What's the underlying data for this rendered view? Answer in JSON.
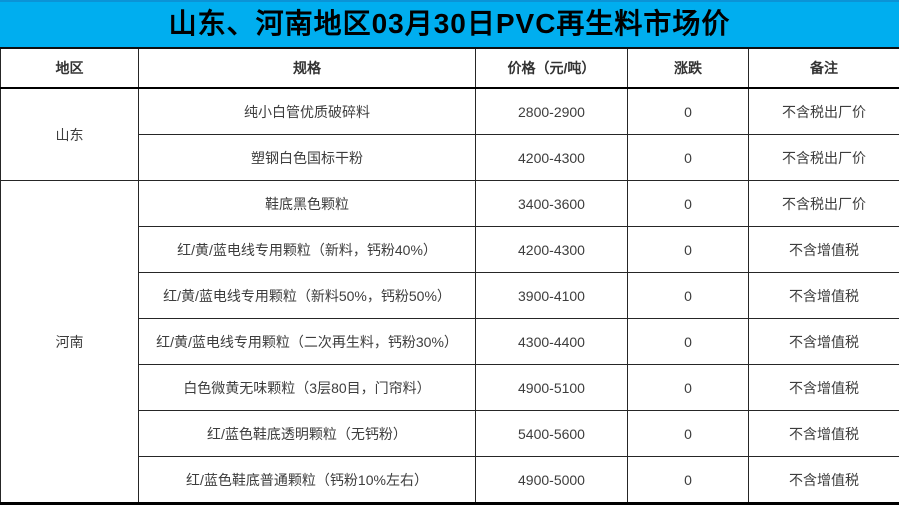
{
  "title": "山东、河南地区03月30日PVC再生料市场价",
  "colors": {
    "title_bg": "#00AEEF",
    "title_text": "#000000",
    "grid_line": "#262626",
    "body_text": "#3d3d3d"
  },
  "table": {
    "headers": [
      "地区",
      "规格",
      "价格（元/吨）",
      "涨跌",
      "备注"
    ],
    "regions": [
      {
        "name": "山东",
        "rowspan": 2
      },
      {
        "name": "河南",
        "rowspan": 7
      }
    ],
    "rows": [
      {
        "spec": "纯小白管优质破碎料",
        "price": "2800-2900",
        "change": "0",
        "note": "不含税出厂价"
      },
      {
        "spec": "塑钢白色国标干粉",
        "price": "4200-4300",
        "change": "0",
        "note": "不含税出厂价"
      },
      {
        "spec": "鞋底黑色颗粒",
        "price": "3400-3600",
        "change": "0",
        "note": "不含税出厂价"
      },
      {
        "spec": "红/黄/蓝电线专用颗粒（新料，钙粉40%）",
        "price": "4200-4300",
        "change": "0",
        "note": "不含增值税"
      },
      {
        "spec": "红/黄/蓝电线专用颗粒（新料50%，钙粉50%）",
        "price": "3900-4100",
        "change": "0",
        "note": "不含增值税"
      },
      {
        "spec": "红/黄/蓝电线专用颗粒（二次再生料，钙粉30%）",
        "price": "4300-4400",
        "change": "0",
        "note": "不含增值税"
      },
      {
        "spec": "白色微黄无味颗粒（3层80目，门帘料）",
        "price": "4900-5100",
        "change": "0",
        "note": "不含增值税"
      },
      {
        "spec": "红/蓝色鞋底透明颗粒（无钙粉）",
        "price": "5400-5600",
        "change": "0",
        "note": "不含增值税"
      },
      {
        "spec": "红/蓝色鞋底普通颗粒（钙粉10%左右）",
        "price": "4900-5000",
        "change": "0",
        "note": "不含增值税"
      }
    ]
  }
}
